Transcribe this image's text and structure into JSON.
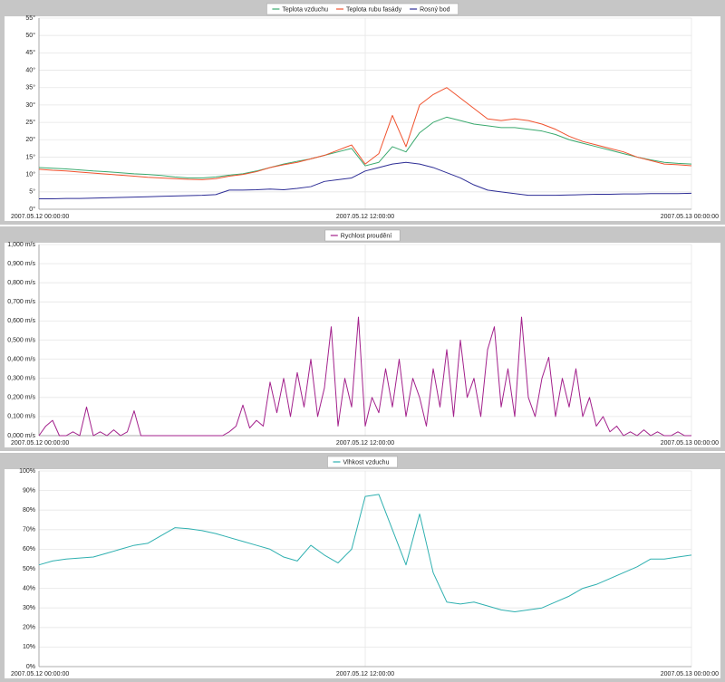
{
  "chart_data": [
    {
      "type": "line",
      "legend": "top",
      "grid": true,
      "x": [
        0,
        0.5,
        1,
        1.5,
        2,
        2.5,
        3,
        3.5,
        4,
        4.5,
        5,
        5.5,
        6,
        6.5,
        7,
        7.5,
        8,
        8.5,
        9,
        9.5,
        10,
        10.5,
        11,
        11.5,
        12,
        12.5,
        13,
        13.5,
        14,
        14.5,
        15,
        15.5,
        16,
        16.5,
        17,
        17.5,
        18,
        18.5,
        19,
        19.5,
        20,
        20.5,
        21,
        21.5,
        22,
        22.5,
        23,
        23.5,
        24
      ],
      "xlim": [
        0,
        24
      ],
      "xticks": [
        {
          "value": 0,
          "label": "2007.05.12 00:00:00"
        },
        {
          "value": 12,
          "label": "2007.05.12 12:00:00"
        },
        {
          "value": 24,
          "label": "2007.05.13 00:00:00"
        }
      ],
      "ylim": [
        0,
        55
      ],
      "yticks": [
        {
          "value": 0,
          "label": "0°"
        },
        {
          "value": 5,
          "label": "5°"
        },
        {
          "value": 10,
          "label": "10°"
        },
        {
          "value": 15,
          "label": "15°"
        },
        {
          "value": 20,
          "label": "20°"
        },
        {
          "value": 25,
          "label": "25°"
        },
        {
          "value": 30,
          "label": "30°"
        },
        {
          "value": 35,
          "label": "35°"
        },
        {
          "value": 40,
          "label": "40°"
        },
        {
          "value": 45,
          "label": "45°"
        },
        {
          "value": 50,
          "label": "50°"
        },
        {
          "value": 55,
          "label": "55°"
        }
      ],
      "series": [
        {
          "name": "Teplota vzduchu",
          "color": "#3aa96e",
          "values": [
            12,
            11.8,
            11.6,
            11.3,
            11,
            10.8,
            10.5,
            10.2,
            10,
            9.7,
            9.3,
            9,
            9,
            9.3,
            9.8,
            10.2,
            11,
            12,
            13,
            13.8,
            14.5,
            15.5,
            16.5,
            17.5,
            12.5,
            13.5,
            18,
            16.5,
            22,
            25,
            26.5,
            25.5,
            24.5,
            24,
            23.5,
            23.5,
            23,
            22.5,
            21.5,
            20,
            19,
            18,
            17,
            16,
            15,
            14.2,
            13.5,
            13.2,
            13
          ]
        },
        {
          "name": "Teplota rubu fasády",
          "color": "#f0522e",
          "values": [
            11.5,
            11.2,
            11,
            10.7,
            10.4,
            10.1,
            9.8,
            9.5,
            9.2,
            9,
            8.8,
            8.6,
            8.5,
            8.8,
            9.5,
            10,
            10.8,
            12,
            12.8,
            13.5,
            14.5,
            15.5,
            17,
            18.5,
            13,
            16,
            27,
            18,
            30,
            33,
            35,
            32,
            29,
            26,
            25.5,
            26,
            25.5,
            24.5,
            23,
            21,
            19.5,
            18.5,
            17.5,
            16.5,
            15,
            14,
            13,
            12.8,
            12.5
          ]
        },
        {
          "name": "Rosný bod",
          "color": "#2e2e96",
          "values": [
            3,
            3,
            3.1,
            3.1,
            3.2,
            3.3,
            3.4,
            3.5,
            3.6,
            3.7,
            3.8,
            3.9,
            4,
            4.2,
            5.5,
            5.5,
            5.6,
            5.8,
            5.6,
            6,
            6.5,
            8,
            8.5,
            9,
            11,
            12,
            13,
            13.5,
            13,
            12,
            10.5,
            9,
            7,
            5.5,
            5,
            4.5,
            4,
            4,
            4,
            4.1,
            4.2,
            4.3,
            4.3,
            4.4,
            4.4,
            4.5,
            4.5,
            4.5,
            4.6
          ]
        }
      ]
    },
    {
      "type": "line",
      "legend": "top",
      "grid": true,
      "x": [
        0,
        0.25,
        0.5,
        0.75,
        1,
        1.25,
        1.5,
        1.75,
        2,
        2.25,
        2.5,
        2.75,
        3,
        3.25,
        3.5,
        3.75,
        4,
        4.25,
        4.5,
        4.75,
        5,
        5.25,
        5.5,
        5.75,
        6,
        6.25,
        6.5,
        6.75,
        7,
        7.25,
        7.5,
        7.75,
        8,
        8.25,
        8.5,
        8.75,
        9,
        9.25,
        9.5,
        9.75,
        10,
        10.25,
        10.5,
        10.75,
        11,
        11.25,
        11.5,
        11.75,
        12,
        12.25,
        12.5,
        12.75,
        13,
        13.25,
        13.5,
        13.75,
        14,
        14.25,
        14.5,
        14.75,
        15,
        15.25,
        15.5,
        15.75,
        16,
        16.25,
        16.5,
        16.75,
        17,
        17.25,
        17.5,
        17.75,
        18,
        18.25,
        18.5,
        18.75,
        19,
        19.25,
        19.5,
        19.75,
        20,
        20.25,
        20.5,
        20.75,
        21,
        21.25,
        21.5,
        21.75,
        22,
        22.25,
        22.5,
        22.75,
        23,
        23.25,
        23.5,
        23.75,
        24
      ],
      "xlim": [
        0,
        24
      ],
      "xticks": [
        {
          "value": 0,
          "label": "2007.05.12 00:00:00"
        },
        {
          "value": 12,
          "label": "2007.05.12 12:00:00"
        },
        {
          "value": 24,
          "label": "2007.05.13 00:00:00"
        }
      ],
      "ylim": [
        0,
        1
      ],
      "yticks": [
        {
          "value": 0,
          "label": "0,000 m/s"
        },
        {
          "value": 0.1,
          "label": "0,100 m/s"
        },
        {
          "value": 0.2,
          "label": "0,200 m/s"
        },
        {
          "value": 0.3,
          "label": "0,300 m/s"
        },
        {
          "value": 0.4,
          "label": "0,400 m/s"
        },
        {
          "value": 0.5,
          "label": "0,500 m/s"
        },
        {
          "value": 0.6,
          "label": "0,600 m/s"
        },
        {
          "value": 0.7,
          "label": "0,700 m/s"
        },
        {
          "value": 0.8,
          "label": "0,800 m/s"
        },
        {
          "value": 0.9,
          "label": "0,900 m/s"
        },
        {
          "value": 1,
          "label": "1,000 m/s"
        }
      ],
      "series": [
        {
          "name": "Rychlost proudění",
          "color": "#a3218c",
          "values": [
            0,
            0.05,
            0.08,
            0,
            0,
            0.02,
            0,
            0.15,
            0,
            0.02,
            0,
            0.03,
            0,
            0.02,
            0.13,
            0,
            0,
            0,
            0,
            0,
            0,
            0,
            0,
            0,
            0,
            0,
            0,
            0,
            0.02,
            0.05,
            0.16,
            0.04,
            0.08,
            0.05,
            0.28,
            0.12,
            0.3,
            0.1,
            0.33,
            0.15,
            0.4,
            0.1,
            0.25,
            0.57,
            0.05,
            0.3,
            0.15,
            0.62,
            0.05,
            0.2,
            0.12,
            0.35,
            0.15,
            0.4,
            0.1,
            0.3,
            0.2,
            0.05,
            0.35,
            0.15,
            0.45,
            0.1,
            0.5,
            0.2,
            0.3,
            0.1,
            0.45,
            0.57,
            0.15,
            0.35,
            0.1,
            0.62,
            0.2,
            0.1,
            0.3,
            0.41,
            0.1,
            0.3,
            0.15,
            0.35,
            0.1,
            0.2,
            0.05,
            0.1,
            0.02,
            0.05,
            0,
            0.02,
            0,
            0.03,
            0,
            0.02,
            0,
            0,
            0.02,
            0,
            0
          ]
        }
      ]
    },
    {
      "type": "line",
      "legend": "top",
      "grid": true,
      "x": [
        0,
        0.5,
        1,
        1.5,
        2,
        2.5,
        3,
        3.5,
        4,
        4.5,
        5,
        5.5,
        6,
        6.5,
        7,
        7.5,
        8,
        8.5,
        9,
        9.5,
        10,
        10.5,
        11,
        11.5,
        12,
        12.5,
        13,
        13.5,
        14,
        14.5,
        15,
        15.5,
        16,
        16.5,
        17,
        17.5,
        18,
        18.5,
        19,
        19.5,
        20,
        20.5,
        21,
        21.5,
        22,
        22.5,
        23,
        23.5,
        24
      ],
      "xlim": [
        0,
        24
      ],
      "xticks": [
        {
          "value": 0,
          "label": "2007.05.12 00:00:00"
        },
        {
          "value": 12,
          "label": "2007.05.12 12:00:00"
        },
        {
          "value": 24,
          "label": "2007.05.13 00:00:00"
        }
      ],
      "ylim": [
        0,
        100
      ],
      "yticks": [
        {
          "value": 0,
          "label": "0%"
        },
        {
          "value": 10,
          "label": "10%"
        },
        {
          "value": 20,
          "label": "20%"
        },
        {
          "value": 30,
          "label": "30%"
        },
        {
          "value": 40,
          "label": "40%"
        },
        {
          "value": 50,
          "label": "50%"
        },
        {
          "value": 60,
          "label": "60%"
        },
        {
          "value": 70,
          "label": "70%"
        },
        {
          "value": 80,
          "label": "80%"
        },
        {
          "value": 90,
          "label": "90%"
        },
        {
          "value": 100,
          "label": "100%"
        }
      ],
      "series": [
        {
          "name": "Vlhkost vzduchu",
          "color": "#2fb0b0",
          "values": [
            52,
            54,
            55,
            55.5,
            56,
            58,
            60,
            62,
            63,
            67,
            71,
            70.5,
            69.5,
            68,
            66,
            64,
            62,
            60,
            56,
            54,
            62,
            57,
            53,
            60,
            87,
            88,
            70,
            52,
            78,
            48,
            33,
            32,
            33,
            31,
            29,
            28,
            29,
            30,
            33,
            36,
            40,
            42,
            45,
            48,
            51,
            55,
            55,
            56,
            57
          ]
        }
      ]
    }
  ]
}
